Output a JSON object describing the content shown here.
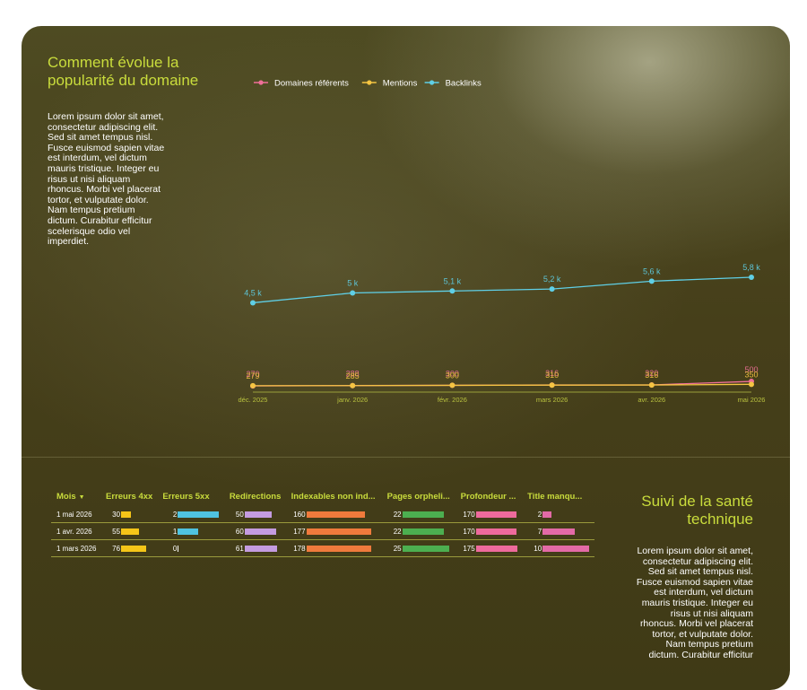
{
  "section1": {
    "title": "Comment évolue la popularité du domaine",
    "paragraph": "Lorem ipsum dolor sit amet, consectetur adipiscing elit. Sed sit amet tempus nisl. Fusce euismod sapien vitae est interdum, vel dictum mauris tristique. Integer eu risus ut nisi aliquam rhoncus. Morbi vel placerat tortor, et vulputate dolor. Nam tempus pretium dictum. Curabitur efficitur scelerisque odio vel imperdiet."
  },
  "section2": {
    "title": "Suivi de la santé technique",
    "paragraph": "Lorem ipsum dolor sit amet, consectetur adipiscing elit. Sed sit amet tempus nisl. Fusce euismod sapien vitae est interdum, vel dictum mauris tristique. Integer eu risus ut nisi aliquam rhoncus. Morbi vel placerat tortor, et vulputate dolor. Nam tempus pretium dictum. Curabitur efficitur"
  },
  "colors": {
    "accent_title": "#c9dc3c",
    "domaines": "#ef6f98",
    "mentions": "#f5c542",
    "backlinks": "#5fcfe6"
  },
  "chart_data": {
    "type": "line",
    "x": [
      "déc. 2025",
      "janv. 2026",
      "févr. 2026",
      "mars 2026",
      "avr. 2026",
      "mai 2026"
    ],
    "legend_position": "top-left",
    "grid": false,
    "series": [
      {
        "name": "Domaines référents",
        "color": "#ef6f98",
        "values": [
          270,
          288,
          300,
          316,
          320,
          500
        ],
        "labels": [
          "270",
          "288",
          "300",
          "316",
          "320",
          "500"
        ]
      },
      {
        "name": "Mentions",
        "color": "#f5c542",
        "values": [
          279,
          285,
          300,
          310,
          316,
          350
        ],
        "labels": [
          "279",
          "285",
          "300",
          "310",
          "316",
          "350"
        ]
      },
      {
        "name": "Backlinks",
        "color": "#5fcfe6",
        "values": [
          4500,
          5000,
          5100,
          5200,
          5600,
          5800
        ],
        "labels": [
          "4,5 k",
          "5 k",
          "5,1 k",
          "5,2 k",
          "5,6 k",
          "5,8 k"
        ]
      }
    ]
  },
  "table": {
    "sort_indicator": "▼",
    "headers": [
      "Mois",
      "Erreurs 4xx",
      "Erreurs 5xx",
      "Redirections",
      "Indexables non ind...",
      "Pages orpheli...",
      "Profondeur ...",
      "Title manqu..."
    ],
    "bar_colors": [
      "#f5c518",
      "#4fc3e0",
      "#c49be0",
      "#f07a3c",
      "#4caf50",
      "#ee6a9c",
      "#e36aa6"
    ],
    "max": [
      76,
      2,
      61,
      178,
      25,
      175,
      10
    ],
    "rows": [
      {
        "mois": "1 mai 2026",
        "values": [
          30,
          2,
          50,
          160,
          22,
          170,
          2
        ]
      },
      {
        "mois": "1 avr. 2026",
        "values": [
          55,
          1,
          60,
          177,
          22,
          170,
          7
        ]
      },
      {
        "mois": "1 mars 2026",
        "values": [
          76,
          0,
          61,
          178,
          25,
          175,
          10
        ]
      }
    ]
  }
}
